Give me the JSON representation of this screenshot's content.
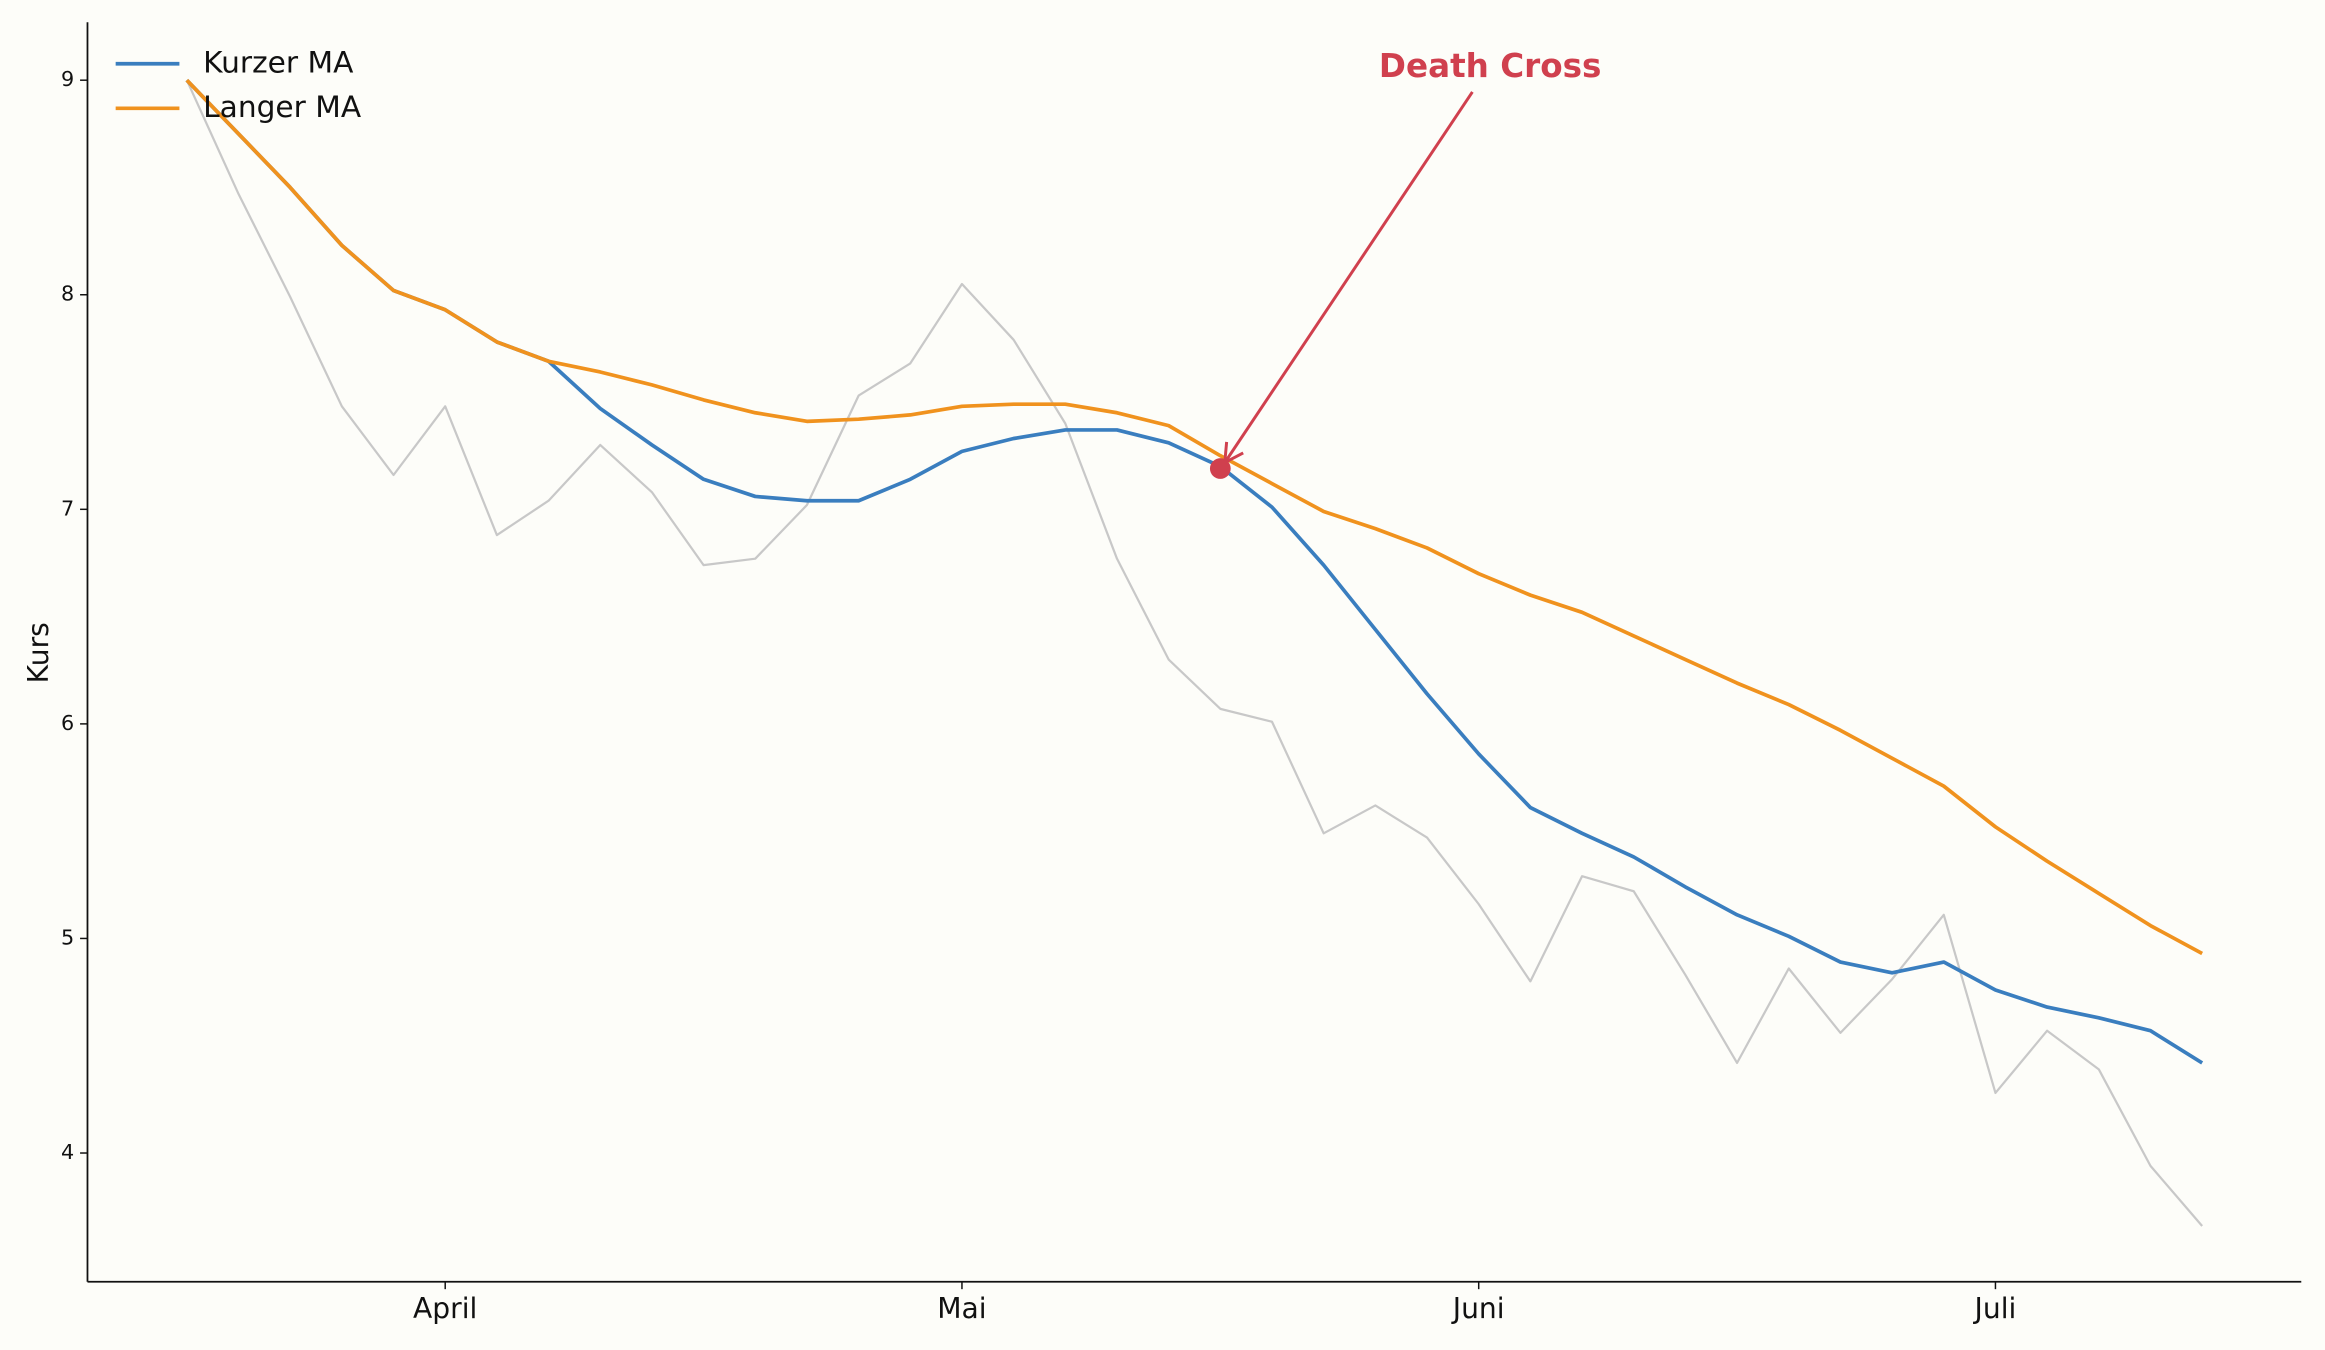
{
  "chart_data": {
    "type": "line",
    "y_label": "Kurs",
    "categories": [
      null,
      null,
      null,
      null,
      null,
      "April",
      null,
      null,
      null,
      null,
      null,
      null,
      null,
      null,
      null,
      "Mai",
      null,
      null,
      null,
      null,
      null,
      null,
      null,
      null,
      null,
      "Juni",
      null,
      null,
      null,
      null,
      null,
      null,
      null,
      null,
      null,
      "Juli",
      null,
      null,
      null,
      null
    ],
    "series": [
      {
        "color": "#c8c8c8",
        "values": [
          9.0,
          8.47,
          7.99,
          7.48,
          7.16,
          7.48,
          6.88,
          7.04,
          7.3,
          7.08,
          6.74,
          6.77,
          7.02,
          7.53,
          7.68,
          8.05,
          7.79,
          7.4,
          6.77,
          6.3,
          6.07,
          6.01,
          5.49,
          5.62,
          5.47,
          5.16,
          4.8,
          5.29,
          5.22,
          4.83,
          4.42,
          4.86,
          4.56,
          4.81,
          5.11,
          4.28,
          4.57,
          4.39,
          3.94,
          3.66
        ]
      },
      {
        "name": "Kurzer MA",
        "color": "#3a7ebf",
        "values": [
          9.0,
          8.75,
          8.5,
          8.23,
          8.02,
          7.93,
          7.78,
          7.69,
          7.47,
          7.3,
          7.14,
          7.06,
          7.04,
          7.04,
          7.14,
          7.27,
          7.33,
          7.37,
          7.37,
          7.31,
          7.2,
          7.01,
          6.74,
          6.44,
          6.14,
          5.86,
          5.61,
          5.49,
          5.38,
          5.24,
          5.11,
          5.01,
          4.89,
          4.84,
          4.89,
          4.76,
          4.68,
          4.63,
          4.57,
          4.42
        ]
      },
      {
        "name": "Langer MA",
        "color": "#f0921e",
        "values": [
          9.0,
          8.75,
          8.5,
          8.23,
          8.02,
          7.93,
          7.78,
          7.69,
          7.64,
          7.58,
          7.51,
          7.45,
          7.41,
          7.42,
          7.44,
          7.48,
          7.49,
          7.49,
          7.45,
          7.39,
          7.25,
          7.12,
          6.99,
          6.91,
          6.82,
          6.7,
          6.6,
          6.52,
          6.41,
          6.3,
          6.19,
          6.09,
          5.97,
          5.84,
          5.71,
          5.52,
          5.36,
          5.21,
          5.06,
          4.93
        ]
      }
    ],
    "ylim": [
      3.4,
      9.27
    ],
    "yticks": [
      4,
      5,
      6,
      7,
      8,
      9
    ],
    "legend": "upper left",
    "annotation": {
      "text": "Death Cross",
      "x": 20,
      "y": 7.19,
      "color": "#d0404e"
    }
  }
}
